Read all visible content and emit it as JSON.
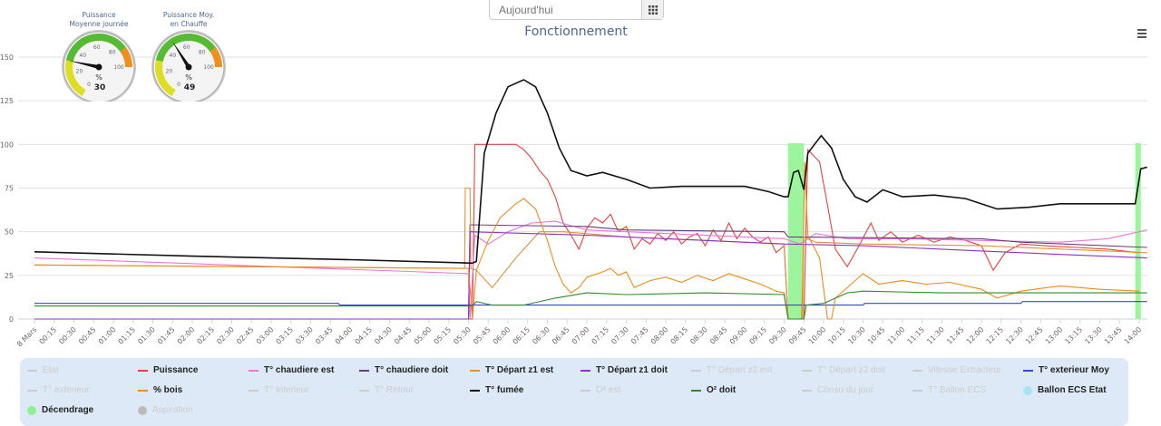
{
  "date_picker": {
    "placeholder": "Aujourd'hui",
    "calendar_icon": "calendar-grid-icon"
  },
  "gauges": [
    {
      "title": "Puissance\nMoyenne journée",
      "unit": "%",
      "value": 30,
      "min": 0,
      "max": 100,
      "ticks": [
        "0",
        "20",
        "40",
        "60",
        "80",
        "100"
      ]
    },
    {
      "title": "Puissance Moy.\nen Chauffe",
      "unit": "%",
      "value": 49,
      "min": 0,
      "max": 100,
      "ticks": [
        "0",
        "20",
        "40",
        "60",
        "80",
        "100"
      ]
    }
  ],
  "menu_icon": "hamburger-icon",
  "chart_data": {
    "type": "line",
    "title": "Fonctionnement",
    "ylim": [
      0,
      150
    ],
    "yticks": [
      "0",
      "25",
      "50",
      "75",
      "100",
      "125",
      "150"
    ],
    "xlim": [
      0,
      14
    ],
    "xticks": [
      "8 Mars",
      "00:15",
      "00:30",
      "00:45",
      "01:00",
      "01:15",
      "01:30",
      "01:45",
      "02:00",
      "02:15",
      "02:30",
      "02:45",
      "03:00",
      "03:15",
      "03:30",
      "03:45",
      "04:00",
      "04:15",
      "04:30",
      "04:45",
      "05:00",
      "05:15",
      "05:30",
      "05:45",
      "06:00",
      "06:15",
      "06:30",
      "06:45",
      "07:00",
      "07:15",
      "07:30",
      "07:45",
      "08:00",
      "08:15",
      "08:30",
      "08:45",
      "09:00",
      "09:15",
      "09:30",
      "09:45",
      "10:00",
      "10:15",
      "10:30",
      "10:45",
      "11:00",
      "11:15",
      "11:30",
      "11:45",
      "12:00",
      "12:15",
      "12:30",
      "12:45",
      "13:00",
      "13:15",
      "13:30",
      "13:45",
      "14:00"
    ],
    "bands": [
      {
        "series": "Décendrage",
        "from": 9.55,
        "to": 9.75
      },
      {
        "series": "Décendrage",
        "from": 13.95,
        "to": 14.02
      }
    ],
    "series": [
      {
        "name": "Etat",
        "color": "#cccccc",
        "visible": false,
        "points": []
      },
      {
        "name": "Puissance",
        "color": "#e8413c",
        "visible": true,
        "points": [
          [
            0,
            0
          ],
          [
            5.55,
            0
          ],
          [
            5.58,
            100
          ],
          [
            6.1,
            100
          ],
          [
            6.2,
            97
          ],
          [
            6.3,
            92
          ],
          [
            6.4,
            85
          ],
          [
            6.5,
            80
          ],
          [
            6.6,
            70
          ],
          [
            6.7,
            55
          ],
          [
            6.8,
            48
          ],
          [
            6.9,
            40
          ],
          [
            7.0,
            52
          ],
          [
            7.1,
            58
          ],
          [
            7.2,
            55
          ],
          [
            7.3,
            60
          ],
          [
            7.4,
            50
          ],
          [
            7.5,
            53
          ],
          [
            7.6,
            40
          ],
          [
            7.7,
            46
          ],
          [
            7.8,
            43
          ],
          [
            7.9,
            49
          ],
          [
            8.0,
            45
          ],
          [
            8.1,
            50
          ],
          [
            8.2,
            43
          ],
          [
            8.3,
            47
          ],
          [
            8.4,
            49
          ],
          [
            8.5,
            42
          ],
          [
            8.6,
            51
          ],
          [
            8.7,
            45
          ],
          [
            8.8,
            55
          ],
          [
            8.9,
            46
          ],
          [
            9.0,
            52
          ],
          [
            9.1,
            47
          ],
          [
            9.2,
            44
          ],
          [
            9.3,
            47
          ],
          [
            9.4,
            38
          ],
          [
            9.5,
            42
          ],
          [
            9.55,
            0
          ],
          [
            9.75,
            0
          ],
          [
            9.8,
            97
          ],
          [
            9.95,
            90
          ],
          [
            10.05,
            65
          ],
          [
            10.15,
            40
          ],
          [
            10.3,
            30
          ],
          [
            10.45,
            42
          ],
          [
            10.6,
            55
          ],
          [
            10.7,
            45
          ],
          [
            10.85,
            50
          ],
          [
            11.0,
            44
          ],
          [
            11.2,
            48
          ],
          [
            11.4,
            44
          ],
          [
            11.6,
            47
          ],
          [
            11.8,
            45
          ],
          [
            12.0,
            42
          ],
          [
            12.15,
            28
          ],
          [
            12.3,
            38
          ],
          [
            12.5,
            43
          ],
          [
            12.8,
            42
          ],
          [
            13.2,
            41
          ],
          [
            13.6,
            40
          ],
          [
            14.0,
            38
          ]
        ]
      },
      {
        "name": "T° chaudiere est",
        "color": "#e877d9",
        "visible": true,
        "points": [
          [
            0,
            35
          ],
          [
            5.5,
            26
          ],
          [
            5.52,
            0
          ],
          [
            5.58,
            48
          ],
          [
            5.75,
            43
          ],
          [
            6.0,
            50
          ],
          [
            6.3,
            55
          ],
          [
            6.6,
            56
          ],
          [
            7.0,
            51
          ],
          [
            8.0,
            49
          ],
          [
            9.0,
            47
          ],
          [
            9.5,
            46
          ],
          [
            9.7,
            43
          ],
          [
            9.9,
            49
          ],
          [
            10.3,
            46
          ],
          [
            11.0,
            46
          ],
          [
            12.0,
            45
          ],
          [
            13.0,
            44
          ],
          [
            13.6,
            46
          ],
          [
            14.1,
            51
          ]
        ]
      },
      {
        "name": "T° chaudiere doit",
        "color": "#6b3a7a",
        "visible": true,
        "points": [
          [
            0,
            0
          ],
          [
            5.5,
            0
          ],
          [
            5.52,
            54
          ],
          [
            7.0,
            53
          ],
          [
            7.5,
            51
          ],
          [
            9.5,
            50
          ],
          [
            9.55,
            47
          ],
          [
            12.0,
            46
          ],
          [
            12.5,
            44
          ],
          [
            14.1,
            41
          ]
        ]
      },
      {
        "name": "T° Départ z1 est",
        "color": "#e0923a",
        "visible": true,
        "points": [
          [
            0,
            31
          ],
          [
            5.45,
            29
          ],
          [
            5.46,
            75
          ],
          [
            5.52,
            75
          ],
          [
            5.53,
            29
          ],
          [
            5.6,
            28
          ],
          [
            5.8,
            18
          ],
          [
            6.1,
            35
          ],
          [
            6.4,
            50
          ],
          [
            6.7,
            50
          ],
          [
            7.5,
            47
          ],
          [
            9.5,
            43
          ],
          [
            9.55,
            0
          ],
          [
            9.72,
            0
          ],
          [
            9.75,
            47
          ],
          [
            9.9,
            44
          ],
          [
            10.5,
            43
          ],
          [
            12.0,
            42
          ],
          [
            14.1,
            38
          ]
        ]
      },
      {
        "name": "T° Départ z1 doit",
        "color": "#8e32c4",
        "visible": true,
        "points": [
          [
            0,
            0
          ],
          [
            5.5,
            0
          ],
          [
            5.52,
            50
          ],
          [
            7.0,
            48
          ],
          [
            8.5,
            45
          ],
          [
            9.5,
            43
          ],
          [
            10.5,
            42
          ],
          [
            12.0,
            39
          ],
          [
            13.0,
            37
          ],
          [
            14.1,
            35
          ]
        ]
      },
      {
        "name": "T° Départ z2 est",
        "color": "#cccccc",
        "visible": false,
        "points": []
      },
      {
        "name": "T° Départ z2 doit",
        "color": "#cccccc",
        "visible": false,
        "points": []
      },
      {
        "name": "Vitesse Extracteur",
        "color": "#cccccc",
        "visible": false,
        "points": []
      },
      {
        "name": "T° exterieur Moy",
        "color": "#3347c9",
        "visible": true,
        "points": [
          [
            0,
            9
          ],
          [
            3.85,
            9
          ],
          [
            3.87,
            8
          ],
          [
            10.5,
            8
          ],
          [
            10.52,
            9
          ],
          [
            12.5,
            9
          ],
          [
            12.52,
            10
          ],
          [
            14.1,
            10
          ]
        ]
      },
      {
        "name": "T° exterieur",
        "color": "#cccccc",
        "visible": false,
        "points": []
      },
      {
        "name": "% bois",
        "color": "#f08a1a",
        "visible": true,
        "points": [
          [
            0,
            31
          ],
          [
            5.5,
            29
          ],
          [
            5.55,
            0
          ],
          [
            5.6,
            28
          ],
          [
            5.75,
            45
          ],
          [
            5.9,
            58
          ],
          [
            6.1,
            66
          ],
          [
            6.2,
            69
          ],
          [
            6.35,
            63
          ],
          [
            6.5,
            45
          ],
          [
            6.6,
            30
          ],
          [
            6.7,
            20
          ],
          [
            6.8,
            15
          ],
          [
            6.9,
            18
          ],
          [
            7.0,
            24
          ],
          [
            7.2,
            27
          ],
          [
            7.3,
            29
          ],
          [
            7.4,
            25
          ],
          [
            7.5,
            27
          ],
          [
            7.6,
            18
          ],
          [
            7.8,
            22
          ],
          [
            8.0,
            24
          ],
          [
            8.2,
            21
          ],
          [
            8.4,
            25
          ],
          [
            8.6,
            22
          ],
          [
            8.8,
            26
          ],
          [
            9.0,
            23
          ],
          [
            9.2,
            20
          ],
          [
            9.4,
            16
          ],
          [
            9.5,
            15
          ],
          [
            9.55,
            0
          ],
          [
            9.73,
            0
          ],
          [
            9.76,
            90
          ],
          [
            9.8,
            48
          ],
          [
            9.95,
            35
          ],
          [
            10.05,
            0
          ],
          [
            10.1,
            0
          ],
          [
            10.15,
            12
          ],
          [
            10.35,
            20
          ],
          [
            10.5,
            26
          ],
          [
            10.7,
            20
          ],
          [
            11.0,
            22
          ],
          [
            11.3,
            20
          ],
          [
            11.6,
            21
          ],
          [
            12.0,
            17
          ],
          [
            12.2,
            12
          ],
          [
            12.5,
            16
          ],
          [
            13.0,
            19
          ],
          [
            13.5,
            17
          ],
          [
            14.0,
            16
          ]
        ]
      },
      {
        "name": "T° Interieur",
        "color": "#cccccc",
        "visible": false,
        "points": []
      },
      {
        "name": "T° Retour",
        "color": "#cccccc",
        "visible": false,
        "points": []
      },
      {
        "name": "T° fumée",
        "color": "#111111",
        "visible": true,
        "points": [
          [
            0,
            38.5
          ],
          [
            2,
            36
          ],
          [
            4,
            34
          ],
          [
            5.55,
            32
          ],
          [
            5.6,
            33
          ],
          [
            5.7,
            95
          ],
          [
            5.85,
            118
          ],
          [
            6.0,
            133
          ],
          [
            6.2,
            137
          ],
          [
            6.35,
            133
          ],
          [
            6.5,
            118
          ],
          [
            6.65,
            98
          ],
          [
            6.8,
            85
          ],
          [
            7.0,
            82
          ],
          [
            7.2,
            84
          ],
          [
            7.5,
            80
          ],
          [
            7.8,
            75
          ],
          [
            8.2,
            76
          ],
          [
            8.6,
            76
          ],
          [
            9.0,
            76
          ],
          [
            9.3,
            73
          ],
          [
            9.5,
            70
          ],
          [
            9.55,
            70
          ],
          [
            9.62,
            84
          ],
          [
            9.68,
            85
          ],
          [
            9.75,
            74
          ],
          [
            9.8,
            95
          ],
          [
            9.97,
            105
          ],
          [
            10.1,
            98
          ],
          [
            10.25,
            80
          ],
          [
            10.4,
            70
          ],
          [
            10.55,
            67
          ],
          [
            10.75,
            74
          ],
          [
            11.0,
            70
          ],
          [
            11.4,
            71
          ],
          [
            11.8,
            69
          ],
          [
            12.2,
            63
          ],
          [
            12.6,
            64
          ],
          [
            13.0,
            66
          ],
          [
            13.5,
            66
          ],
          [
            13.95,
            66
          ],
          [
            14.02,
            86
          ],
          [
            14.1,
            87
          ]
        ]
      },
      {
        "name": "O² est",
        "color": "#cccccc",
        "visible": false,
        "points": []
      },
      {
        "name": "O² doit",
        "color": "#2c8a2c",
        "visible": true,
        "points": [
          [
            0,
            7.5
          ],
          [
            5.55,
            7.5
          ],
          [
            5.6,
            10
          ],
          [
            5.8,
            8
          ],
          [
            6.2,
            8
          ],
          [
            6.6,
            12
          ],
          [
            7.0,
            15
          ],
          [
            7.5,
            14
          ],
          [
            8.5,
            15
          ],
          [
            9.5,
            14
          ],
          [
            9.55,
            0
          ],
          [
            9.75,
            0
          ],
          [
            9.78,
            8
          ],
          [
            10.0,
            9
          ],
          [
            10.3,
            15
          ],
          [
            10.5,
            16
          ],
          [
            11.5,
            15
          ],
          [
            14.1,
            15
          ]
        ]
      },
      {
        "name": "Conso du jour",
        "color": "#cccccc",
        "visible": false,
        "points": []
      },
      {
        "name": "T° Ballon ECS",
        "color": "#cccccc",
        "visible": false,
        "points": []
      },
      {
        "name": "Ballon ECS Etat",
        "color": "#a8e4f5",
        "visible": true,
        "marker": "dot",
        "points": []
      },
      {
        "name": "Décendrage",
        "color": "#90f090",
        "visible": true,
        "marker": "dot",
        "points": []
      },
      {
        "name": "Aspiration",
        "color": "#bbbbbb",
        "visible": false,
        "marker": "dot",
        "points": []
      }
    ]
  }
}
